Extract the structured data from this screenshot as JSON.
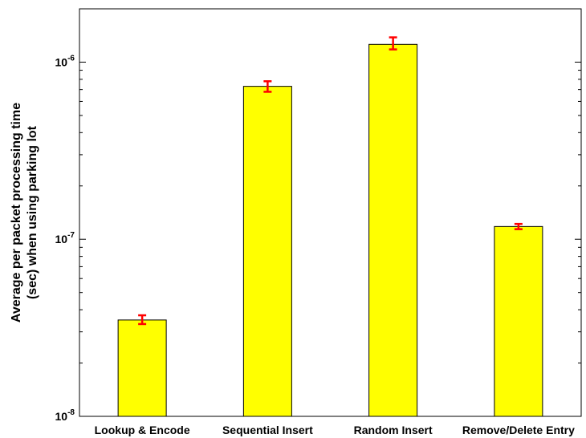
{
  "chart_data": {
    "type": "bar",
    "categories": [
      "Lookup & Encode",
      "Sequential Insert",
      "Random Insert",
      "Remove/Delete Entry"
    ],
    "values": [
      3.5e-08,
      7.3e-07,
      1.26e-06,
      1.18e-07
    ],
    "errors": [
      {
        "low": 3.32e-08,
        "high": 3.72e-08
      },
      {
        "low": 6.8e-07,
        "high": 7.8e-07
      },
      {
        "low": 1.18e-06,
        "high": 1.38e-06
      },
      {
        "low": 1.14e-07,
        "high": 1.22e-07
      }
    ],
    "ylabel_lines": [
      "Average per packet processing time",
      "(sec) when using parking lot"
    ],
    "xlabel": "",
    "yscale": "log",
    "ylim": [
      1e-08,
      2e-06
    ],
    "major_ticks": [
      {
        "value": 1e-08,
        "base": "10",
        "exp": "-8"
      },
      {
        "value": 1e-07,
        "base": "10",
        "exp": "-7"
      },
      {
        "value": 1e-06,
        "base": "10",
        "exp": "-6"
      }
    ],
    "grid": false,
    "bar_color": "#ffff00",
    "error_color": "#ff0000"
  }
}
